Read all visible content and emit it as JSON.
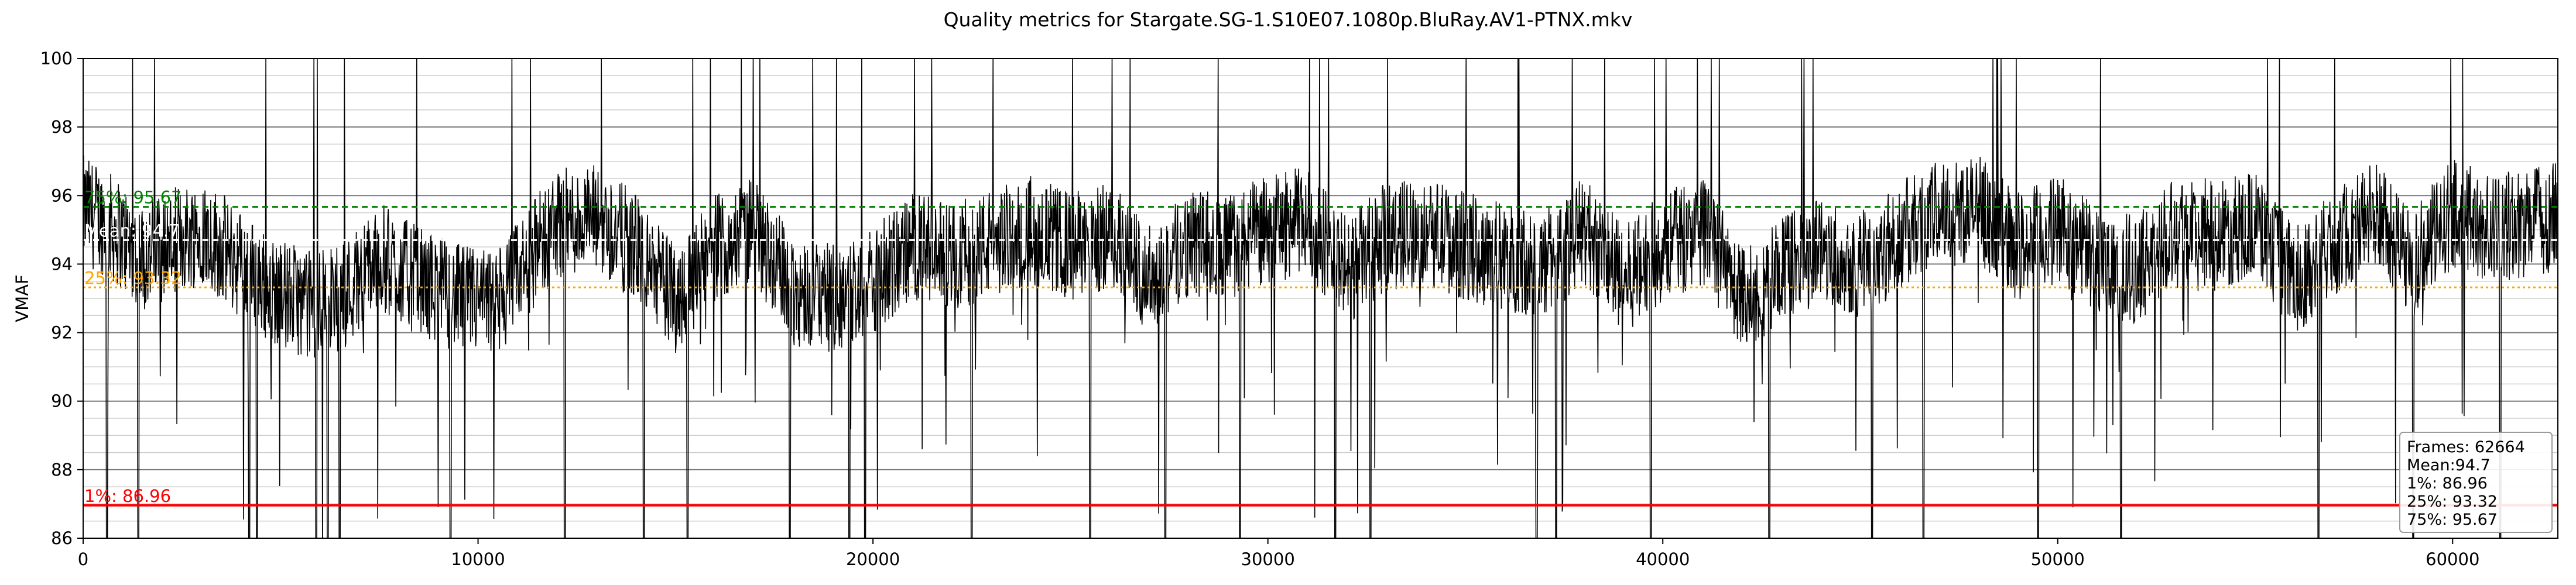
{
  "chart_data": {
    "type": "line",
    "title": "Quality metrics for Stargate.SG-1.S10E07.1080p.BluRay.AV1-PTNX.mkv",
    "xlabel": "",
    "ylabel": "VMAF",
    "xlim": [
      0,
      62664
    ],
    "ylim": [
      86,
      100
    ],
    "x_ticks": [
      0,
      10000,
      20000,
      30000,
      40000,
      50000,
      60000
    ],
    "x_tick_labels": [
      "0",
      "10000",
      "20000",
      "30000",
      "40000",
      "50000",
      "60000"
    ],
    "y_ticks": [
      86,
      88,
      90,
      92,
      94,
      96,
      98,
      100
    ],
    "y_tick_labels": [
      "86",
      "88",
      "90",
      "92",
      "94",
      "96",
      "98",
      "100"
    ],
    "minor_y_grid_step": 0.5,
    "grid": true,
    "series": [
      {
        "color": "#000000",
        "frames": 62664,
        "profile_points": [
          [
            0,
            95.6
          ],
          [
            600,
            95.2
          ],
          [
            1500,
            94.2
          ],
          [
            2200,
            94.6
          ],
          [
            3000,
            95.0
          ],
          [
            4000,
            94.0
          ],
          [
            4800,
            93.2
          ],
          [
            5800,
            92.8
          ],
          [
            6500,
            93.0
          ],
          [
            7500,
            94.2
          ],
          [
            8500,
            93.5
          ],
          [
            9500,
            93.0
          ],
          [
            10500,
            92.8
          ],
          [
            11200,
            94.0
          ],
          [
            12000,
            95.2
          ],
          [
            13000,
            95.3
          ],
          [
            14000,
            94.5
          ],
          [
            15000,
            93.0
          ],
          [
            16000,
            94.5
          ],
          [
            17000,
            95.0
          ],
          [
            18000,
            93.2
          ],
          [
            19000,
            93.0
          ],
          [
            20000,
            93.5
          ],
          [
            21000,
            94.5
          ],
          [
            22000,
            94.2
          ],
          [
            23000,
            94.6
          ],
          [
            24000,
            95.0
          ],
          [
            25000,
            94.5
          ],
          [
            26000,
            94.8
          ],
          [
            27000,
            93.6
          ],
          [
            28000,
            94.6
          ],
          [
            29000,
            94.5
          ],
          [
            30000,
            95.0
          ],
          [
            31000,
            95.3
          ],
          [
            32000,
            93.8
          ],
          [
            33000,
            94.8
          ],
          [
            34000,
            95.0
          ],
          [
            35000,
            94.5
          ],
          [
            36000,
            94.2
          ],
          [
            37000,
            94.0
          ],
          [
            38000,
            95.0
          ],
          [
            39000,
            93.5
          ],
          [
            40000,
            94.5
          ],
          [
            41000,
            95.0
          ],
          [
            42000,
            93.0
          ],
          [
            43000,
            93.8
          ],
          [
            44000,
            94.5
          ],
          [
            45000,
            94.0
          ],
          [
            46000,
            94.8
          ],
          [
            47000,
            95.5
          ],
          [
            48000,
            95.6
          ],
          [
            49000,
            94.5
          ],
          [
            50000,
            95.0
          ],
          [
            51000,
            94.2
          ],
          [
            52000,
            93.8
          ],
          [
            53000,
            95.2
          ],
          [
            54000,
            94.8
          ],
          [
            55000,
            95.2
          ],
          [
            56000,
            93.5
          ],
          [
            57000,
            94.6
          ],
          [
            58000,
            95.5
          ],
          [
            59000,
            94.0
          ],
          [
            60000,
            95.5
          ],
          [
            61000,
            95.0
          ],
          [
            62664,
            95.4
          ]
        ]
      }
    ],
    "reference_lines": [
      {
        "label": "75%: 95.67",
        "value": 95.67,
        "color": "#008000",
        "style": "dashed"
      },
      {
        "label": "Mean: 94.7",
        "value": 94.7,
        "color": "#ffffff",
        "style": "dashed"
      },
      {
        "label": "25%: 93.32",
        "value": 93.32,
        "color": "#ffa500",
        "style": "dotted"
      },
      {
        "label": "1%: 86.96",
        "value": 86.96,
        "color": "#ff0000",
        "style": "solid"
      }
    ],
    "legend": {
      "placement": "bottom-right",
      "lines": [
        "Frames: 62664",
        "Mean:94.7",
        "1%: 86.96",
        "25%: 93.32",
        "75%: 95.67"
      ]
    }
  }
}
